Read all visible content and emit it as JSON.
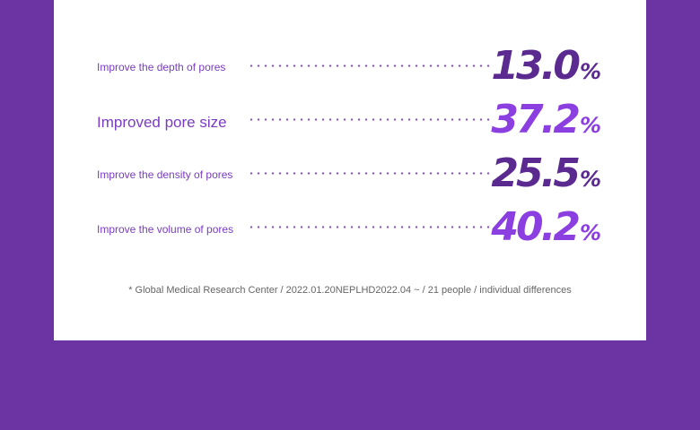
{
  "stats": [
    {
      "label": "Improve the depth of pores",
      "value": "13.0",
      "unit": "%"
    },
    {
      "label": "Improved pore size",
      "value": "37.2",
      "unit": "%"
    },
    {
      "label": "Improve the density of pores",
      "value": "25.5",
      "unit": "%"
    },
    {
      "label": "Improve the volume of pores",
      "value": "40.2",
      "unit": "%"
    }
  ],
  "footnote": "* Global Medical Research Center / 2022.01.20NEPLHD2022.04 ~ / 21 people / individual differences",
  "colors": {
    "background": "#6c33a3",
    "card": "#ffffff",
    "label": "#7b3cc4",
    "value_dark": "#5b2a90",
    "value_bright": "#8b3fe0"
  }
}
